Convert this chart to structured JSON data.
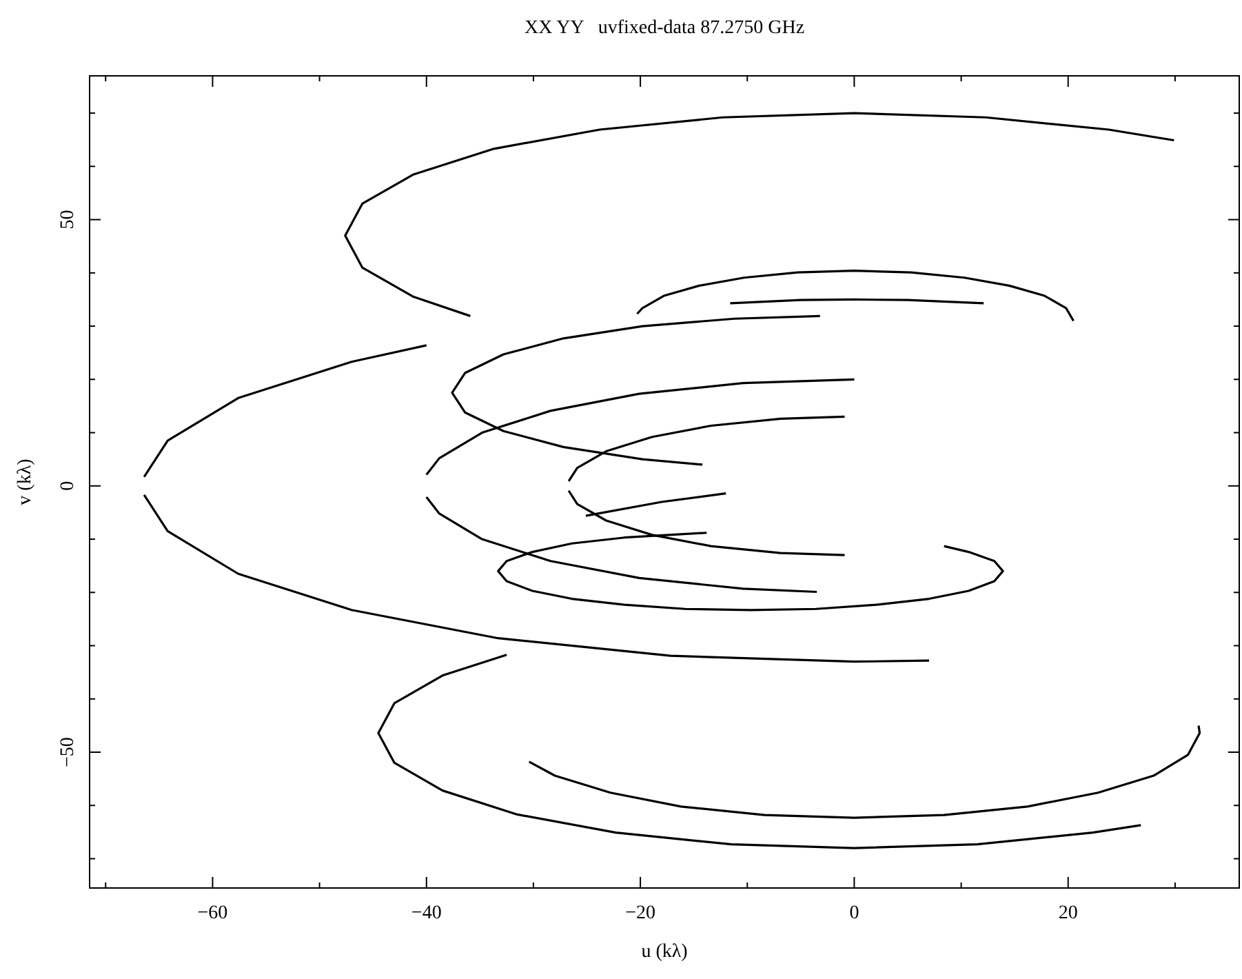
{
  "chart_data": {
    "type": "line",
    "title": "XX YY   uvfixed-data 87.2750 GHz",
    "xlabel": "u (kλ)",
    "ylabel": "v (kλ)",
    "xlim": [
      -71.5,
      36
    ],
    "ylim": [
      -75.5,
      77
    ],
    "xticks": [
      {
        "value": -70,
        "label": null
      },
      -60,
      {
        "value": -50,
        "label": null
      },
      -40,
      {
        "value": -30,
        "label": null
      },
      -20,
      {
        "value": -10,
        "label": null
      },
      0,
      {
        "value": 10,
        "label": null
      },
      20,
      {
        "value": 30,
        "label": null
      }
    ],
    "yticks": [
      {
        "value": -70,
        "label": null
      },
      {
        "value": -60,
        "label": null
      },
      -50,
      {
        "value": -40,
        "label": null
      },
      {
        "value": -30,
        "label": null
      },
      {
        "value": -20,
        "label": null
      },
      {
        "value": -10,
        "label": null
      },
      0,
      {
        "value": 10,
        "label": null
      },
      {
        "value": 20,
        "label": null
      },
      {
        "value": 30,
        "label": null
      },
      {
        "value": 40,
        "label": null
      },
      50,
      {
        "value": 60,
        "label": null
      },
      {
        "value": 70,
        "label": null
      }
    ],
    "series": [
      {
        "color": "#000000",
        "x": [
          29.9,
          23.8,
          12.3,
          0,
          -12.3,
          -23.8,
          -33.7,
          -41.2,
          -46.0,
          -47.6,
          -46.0,
          -41.2,
          -35.9
        ],
        "values": [
          64.9,
          66.9,
          69.2,
          70,
          69.2,
          66.9,
          63.3,
          58.5,
          53.0,
          47,
          41.0,
          35.5,
          31.9
        ]
      },
      {
        "color": "#000000",
        "x": [
          -40.0,
          -47.0,
          -57.6,
          -64.2,
          -66.4,
          null,
          -66.4,
          -64.2,
          -57.6,
          -47.0,
          -33.3,
          -17.2,
          0,
          7.0
        ],
        "values": [
          26.4,
          23.3,
          16.5,
          8.5,
          1.7,
          null,
          -1.7,
          -8.5,
          -16.5,
          -23.3,
          -28.6,
          -31.9,
          -33,
          -32.8
        ]
      },
      {
        "color": "#000000",
        "x": [
          20.5,
          19.8,
          17.8,
          14.5,
          10.3,
          5.3,
          0,
          -5.3,
          -10.3,
          -14.5,
          -17.8,
          -19.8,
          -20.3
        ],
        "values": [
          31,
          33.4,
          35.7,
          37.6,
          39.1,
          40.1,
          40.4,
          40.1,
          39.1,
          37.6,
          35.7,
          33.4,
          32.3
        ]
      },
      {
        "color": "#000000",
        "x": [
          -11.6,
          -5,
          0,
          5,
          12.1
        ],
        "values": [
          34.3,
          34.9,
          35,
          34.9,
          34.3
        ]
      },
      {
        "color": "#000000",
        "x": [
          -3.2,
          -11.2,
          -19.8,
          -27.2,
          -32.8,
          -36.4,
          -37.6,
          -36.4,
          -32.8,
          -27.2,
          -19.8,
          -14.2
        ],
        "values": [
          31.9,
          31.4,
          30.0,
          27.7,
          24.7,
          21.2,
          17.5,
          13.8,
          10.3,
          7.3,
          5.0,
          4.0
        ]
      },
      {
        "color": "#000000",
        "x": [
          0,
          -10.4,
          -20.1,
          -28.4,
          -34.8,
          -38.8,
          -40.0,
          null,
          -40.0,
          -38.8,
          -34.8,
          -28.4,
          -20.1,
          -10.4,
          -3.5
        ],
        "values": [
          20,
          19.3,
          17.3,
          14.1,
          10.0,
          5.2,
          2.1,
          null,
          -2.1,
          -5.2,
          -10.0,
          -14.1,
          -17.3,
          -19.3,
          -19.9
        ]
      },
      {
        "color": "#000000",
        "x": [
          -0.9,
          -6.9,
          -13.4,
          -18.9,
          -23.2,
          -25.9,
          -26.7,
          null,
          -26.7,
          -25.9,
          -23.2,
          -18.9,
          -13.4,
          -6.9,
          -0.9
        ],
        "values": [
          13.0,
          12.6,
          11.3,
          9.2,
          6.5,
          3.4,
          0.9,
          null,
          -0.9,
          -3.4,
          -6.5,
          -9.2,
          -11.3,
          -12.6,
          -13.0
        ]
      },
      {
        "color": "#000000",
        "x": [
          -13.8,
          -21.5,
          -26.4,
          -30.1,
          -32.5,
          -33.3,
          -32.5,
          -30.1,
          -26.4,
          -21.5,
          -15.8,
          -9.7,
          -3.6,
          2.1,
          7.0,
          10.7,
          13.1,
          13.9,
          13.1,
          10.7,
          8.4
        ],
        "values": [
          -8.8,
          -9.7,
          -10.8,
          -12.4,
          -14.1,
          -16,
          -17.9,
          -19.7,
          -21.2,
          -22.3,
          -23.1,
          -23.3,
          -23.1,
          -22.3,
          -21.2,
          -19.7,
          -17.9,
          -16,
          -14.1,
          -12.4,
          -11.3
        ]
      },
      {
        "color": "#000000",
        "x": [
          -25.1,
          -18,
          -12
        ],
        "values": [
          -5.6,
          -3,
          -1.4
        ]
      },
      {
        "color": "#000000",
        "x": [
          -32.5,
          -38.5,
          -43.0,
          -44.5,
          -43.0,
          -38.5,
          -31.5,
          -22.3,
          -11.5,
          0,
          11.5,
          22.3,
          26.8
        ],
        "values": [
          -31.7,
          -35.6,
          -40.8,
          -46.4,
          -52.0,
          -57.2,
          -61.7,
          -65.1,
          -67.3,
          -68.0,
          -67.3,
          -65.1,
          -63.7
        ]
      },
      {
        "color": "#000000",
        "x": [
          -30.4,
          -28.0,
          -22.8,
          -16.2,
          -8.4,
          0,
          8.4,
          16.2,
          22.8,
          28.0,
          31.2,
          32.3,
          32.2
        ],
        "values": [
          -51.8,
          -54.4,
          -57.6,
          -60.2,
          -61.8,
          -62.3,
          -61.8,
          -60.2,
          -57.6,
          -54.4,
          -50.5,
          -46.4,
          -45.0
        ]
      }
    ]
  }
}
